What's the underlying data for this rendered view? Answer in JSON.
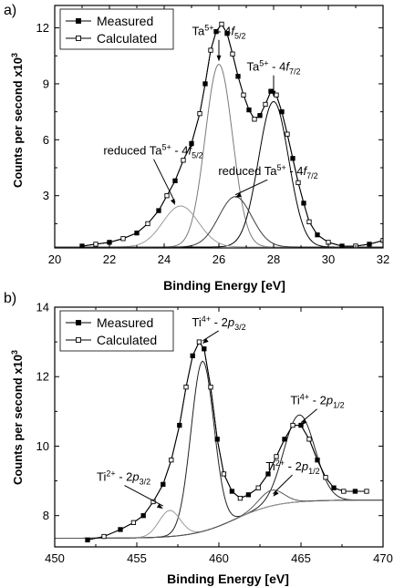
{
  "chart_data": [
    {
      "panel_label": "a)",
      "type": "line",
      "xlabel": "Binding Energy [eV]",
      "ylabel": "Counts per second x10",
      "ylabel_sup": "3",
      "xlim": [
        20,
        32
      ],
      "ylim": [
        0.2,
        13.2
      ],
      "xticks": [
        20,
        22,
        24,
        26,
        28,
        30,
        32
      ],
      "yticks": [
        3,
        6,
        9,
        12
      ],
      "grid": false,
      "legend_position": "top-left",
      "series": [
        {
          "name": "Measured",
          "marker": "filled-square",
          "color": "#000000",
          "x": [
            21.0,
            21.5,
            22.0,
            22.5,
            23.0,
            23.4,
            23.8,
            24.1,
            24.4,
            24.7,
            25.0,
            25.3,
            25.5,
            25.7,
            25.9,
            26.1,
            26.3,
            26.5,
            26.7,
            26.9,
            27.1,
            27.3,
            27.5,
            27.7,
            27.9,
            28.1,
            28.3,
            28.5,
            28.7,
            28.9,
            29.1,
            29.3,
            29.6,
            30.0,
            30.5,
            31.0,
            31.5,
            32.0
          ],
          "y": [
            0.3,
            0.4,
            0.5,
            0.7,
            1.0,
            1.5,
            2.2,
            3.0,
            3.8,
            4.9,
            5.8,
            7.4,
            9.0,
            10.8,
            11.8,
            12.2,
            11.7,
            10.6,
            9.4,
            8.4,
            7.6,
            7.1,
            7.3,
            7.9,
            8.6,
            8.4,
            7.5,
            6.3,
            5.0,
            3.7,
            2.6,
            1.6,
            0.9,
            0.5,
            0.3,
            0.3,
            0.4,
            0.6
          ]
        },
        {
          "name": "Calculated",
          "marker": "open-square",
          "color": "#000000",
          "x": [
            21.0,
            21.5,
            22.0,
            22.5,
            23.0,
            23.4,
            23.8,
            24.1,
            24.4,
            24.7,
            25.0,
            25.3,
            25.5,
            25.7,
            25.9,
            26.1,
            26.3,
            26.5,
            26.7,
            26.9,
            27.1,
            27.3,
            27.5,
            27.7,
            27.9,
            28.1,
            28.3,
            28.5,
            28.7,
            28.9,
            29.1,
            29.3,
            29.6,
            30.0,
            30.5,
            31.0,
            31.5,
            32.0
          ],
          "y": [
            0.3,
            0.4,
            0.5,
            0.7,
            1.0,
            1.5,
            2.2,
            3.0,
            3.8,
            4.9,
            5.8,
            7.4,
            9.0,
            10.8,
            11.8,
            12.2,
            11.7,
            10.6,
            9.4,
            8.4,
            7.6,
            7.1,
            7.3,
            7.9,
            8.6,
            8.4,
            7.5,
            6.3,
            5.0,
            3.7,
            2.6,
            1.6,
            0.9,
            0.5,
            0.3,
            0.3,
            0.4,
            0.6
          ]
        }
      ],
      "components": [
        {
          "center": 26.0,
          "amplitude": 9.8,
          "width": 0.5,
          "color": "#7a7a7a"
        },
        {
          "center": 28.0,
          "amplitude": 7.8,
          "width": 0.55,
          "color": "#000000"
        },
        {
          "center": 24.6,
          "amplitude": 2.2,
          "width": 0.65,
          "color": "#9a9a9a"
        },
        {
          "center": 26.6,
          "amplitude": 2.7,
          "width": 0.6,
          "color": "#3a3a3a"
        }
      ],
      "baseline": 0.25,
      "annotations": [
        {
          "main": "Ta",
          "sup": "5+",
          "mid": " - 4",
          "italic": "f",
          "sub": "5/2",
          "x": 26.0,
          "y": 11.6,
          "arrow_to": [
            26.0,
            10.2
          ]
        },
        {
          "main": "Ta",
          "sup": "5+",
          "mid": " - 4",
          "italic": "f",
          "sub": "7/2",
          "x": 28.0,
          "y": 9.7,
          "arrow_to": [
            28.0,
            8.3
          ]
        },
        {
          "main": "reduced Ta",
          "sup": "5+",
          "mid": " - 4",
          "italic": "f",
          "sub": "5/2",
          "x": 23.6,
          "y": 5.2,
          "arrow_to": [
            24.4,
            2.5
          ]
        },
        {
          "main": "reduced Ta",
          "sup": "5+",
          "mid": " - 4",
          "italic": "f",
          "sub": "7/2",
          "x": 27.8,
          "y": 4.1,
          "arrow_to": [
            26.6,
            2.9
          ]
        }
      ]
    },
    {
      "panel_label": "b)",
      "type": "line",
      "xlabel": "Binding Energy [eV]",
      "ylabel": "Counts per second x10",
      "ylabel_sup": "3",
      "xlim": [
        450,
        470
      ],
      "ylim": [
        7.1,
        14.0
      ],
      "xticks": [
        450,
        455,
        460,
        465,
        470
      ],
      "yticks": [
        8,
        10,
        12,
        14
      ],
      "grid": false,
      "legend_position": "top-left",
      "series": [
        {
          "name": "Measured",
          "marker": "filled-square",
          "color": "#000000",
          "x": [
            452.0,
            453.0,
            454.0,
            454.8,
            455.4,
            456.0,
            456.6,
            457.1,
            457.6,
            458.0,
            458.4,
            458.8,
            459.1,
            459.5,
            459.9,
            460.3,
            460.8,
            461.3,
            461.8,
            462.4,
            463.0,
            463.5,
            464.0,
            464.5,
            465.0,
            465.5,
            466.0,
            466.5,
            467.0,
            467.6,
            468.3,
            469.0
          ],
          "y": [
            7.3,
            7.4,
            7.6,
            7.8,
            8.0,
            8.4,
            8.9,
            9.6,
            10.6,
            11.7,
            12.6,
            13.0,
            12.8,
            11.7,
            10.2,
            9.2,
            8.7,
            8.5,
            8.6,
            8.8,
            9.2,
            9.7,
            10.2,
            10.6,
            10.6,
            10.2,
            9.6,
            9.1,
            8.8,
            8.7,
            8.7,
            8.7
          ]
        },
        {
          "name": "Calculated",
          "marker": "open-square",
          "color": "#000000",
          "x": [
            452.0,
            453.0,
            454.0,
            454.8,
            455.4,
            456.0,
            456.6,
            457.1,
            457.6,
            458.0,
            458.4,
            458.8,
            459.1,
            459.5,
            459.9,
            460.3,
            460.8,
            461.3,
            461.8,
            462.4,
            463.0,
            463.5,
            464.0,
            464.5,
            465.0,
            465.5,
            466.0,
            466.5,
            467.0,
            467.6,
            468.3,
            469.0
          ],
          "y": [
            7.3,
            7.4,
            7.6,
            7.8,
            8.0,
            8.4,
            8.9,
            9.6,
            10.6,
            11.7,
            12.6,
            13.0,
            12.8,
            11.7,
            10.2,
            9.2,
            8.7,
            8.5,
            8.6,
            8.8,
            9.2,
            9.7,
            10.2,
            10.6,
            10.6,
            10.2,
            9.6,
            9.1,
            8.8,
            8.7,
            8.7,
            8.7
          ]
        }
      ],
      "components": [
        {
          "center": 459.0,
          "amplitude": 4.9,
          "width": 0.7,
          "color": "#222222"
        },
        {
          "center": 464.9,
          "amplitude": 2.5,
          "width": 0.95,
          "color": "#222222"
        },
        {
          "center": 457.0,
          "amplitude": 0.75,
          "width": 0.65,
          "color": "#9a9a9a"
        },
        {
          "center": 463.2,
          "amplitude": 0.45,
          "width": 0.75,
          "color": "#555555"
        }
      ],
      "baseline_curve": {
        "type": "step",
        "low": 7.35,
        "high": 8.45,
        "center": 461.0,
        "width": 1.3,
        "color": "#9a9a9a"
      },
      "annotations": [
        {
          "main": "Ti",
          "sup": "4+",
          "mid": " - 2",
          "italic": "p",
          "sub": "3/2",
          "x": 460.0,
          "y": 13.45,
          "arrow_to": [
            459.0,
            12.95
          ]
        },
        {
          "main": "Ti",
          "sup": "4+",
          "mid": " - 2",
          "italic": "p",
          "sub": "1/2",
          "x": 466.0,
          "y": 11.2,
          "arrow_to": [
            465.0,
            10.6
          ]
        },
        {
          "main": "Ti",
          "sup": "2+",
          "mid": " - 2",
          "italic": "p",
          "sub": "3/2",
          "x": 454.2,
          "y": 9.0,
          "arrow_to": [
            456.6,
            8.2
          ]
        },
        {
          "main": "Ti",
          "sup": "2+",
          "mid": " - 2",
          "italic": "p",
          "sub": "1/2",
          "x": 464.5,
          "y": 9.3,
          "arrow_to": [
            463.3,
            8.55
          ]
        }
      ]
    }
  ]
}
